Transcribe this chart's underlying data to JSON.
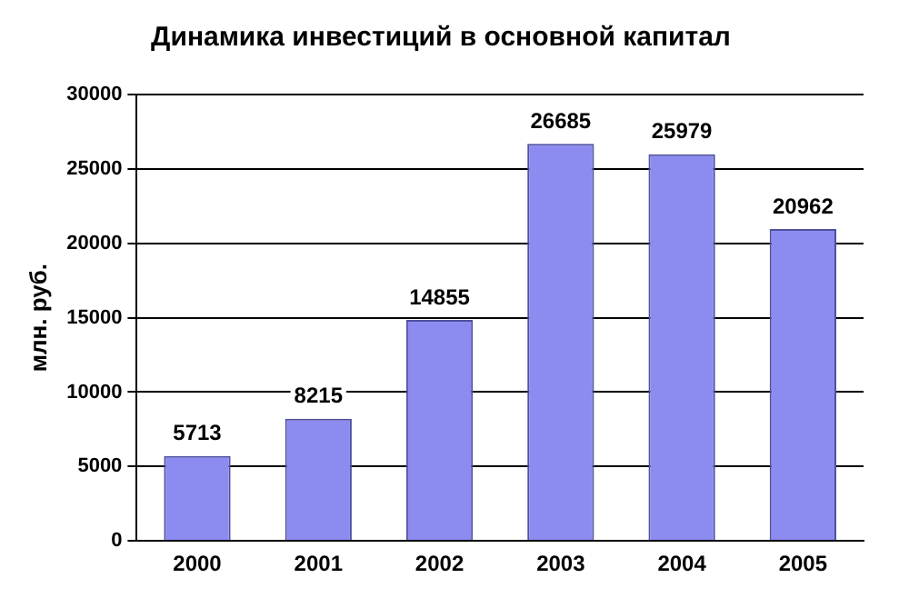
{
  "chart_data": {
    "type": "bar",
    "title": "Динамика инвестиций в основной капитал",
    "ylabel": "млн. руб.",
    "categories": [
      "2000",
      "2001",
      "2002",
      "2003",
      "2004",
      "2005"
    ],
    "values": [
      5713,
      8215,
      14855,
      26685,
      25979,
      20962
    ],
    "color": "#8c8cf0",
    "ylim": [
      0,
      30000
    ],
    "yticks": [
      0,
      5000,
      10000,
      15000,
      20000,
      25000,
      30000
    ],
    "grid": "y",
    "data_labels": true
  }
}
